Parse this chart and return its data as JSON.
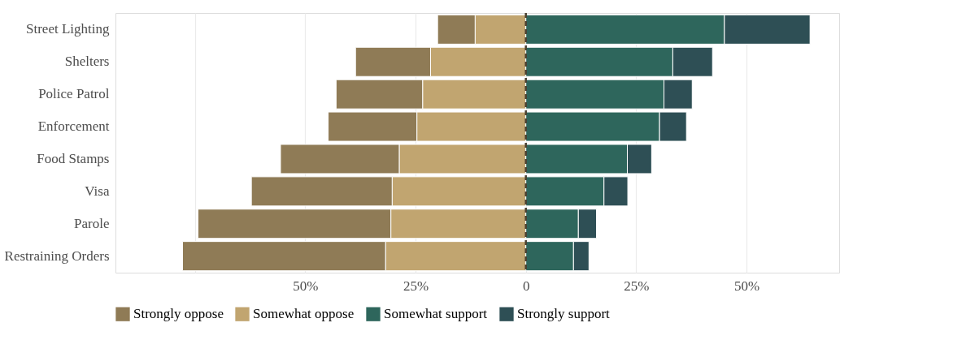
{
  "chart_data": {
    "type": "bar",
    "orientation": "horizontal",
    "stacked": true,
    "categories": [
      "Street Lighting",
      "Shelters",
      "Police Patrol",
      "Enforcement",
      "Food Stamps",
      "Visa",
      "Parole",
      "Restraining Orders"
    ],
    "series": [
      {
        "name": "Somewhat oppose",
        "color": "#c1a570",
        "values": [
          -11.5,
          -21.6,
          -23.4,
          -24.7,
          -28.7,
          -30.3,
          -30.6,
          -31.8
        ]
      },
      {
        "name": "Strongly oppose",
        "color": "#8f7b56",
        "values": [
          -8.5,
          -17.0,
          -19.6,
          -20.1,
          -26.9,
          -31.9,
          -43.7,
          -46.0
        ]
      },
      {
        "name": "Somewhat support",
        "color": "#2e665c",
        "values": [
          45.0,
          33.3,
          31.3,
          30.3,
          23.0,
          17.7,
          11.9,
          10.8
        ]
      },
      {
        "name": "Strongly support",
        "color": "#2e4f55",
        "values": [
          19.4,
          9.0,
          6.4,
          6.1,
          5.5,
          5.4,
          4.1,
          3.5
        ]
      }
    ],
    "xlim": [
      -93,
      71
    ],
    "xticks": [
      {
        "value": -75,
        "label": null
      },
      {
        "value": -50,
        "label": "50%"
      },
      {
        "value": -25,
        "label": "25%"
      },
      0,
      {
        "value": 25,
        "label": "25%"
      },
      {
        "value": 50,
        "label": "50%"
      }
    ],
    "ref_lines": [
      {
        "axis": "x",
        "value": 0,
        "label": null,
        "color": "#4a4030",
        "line_style": "dashed"
      }
    ],
    "grid": "x",
    "legend": "bottom"
  }
}
